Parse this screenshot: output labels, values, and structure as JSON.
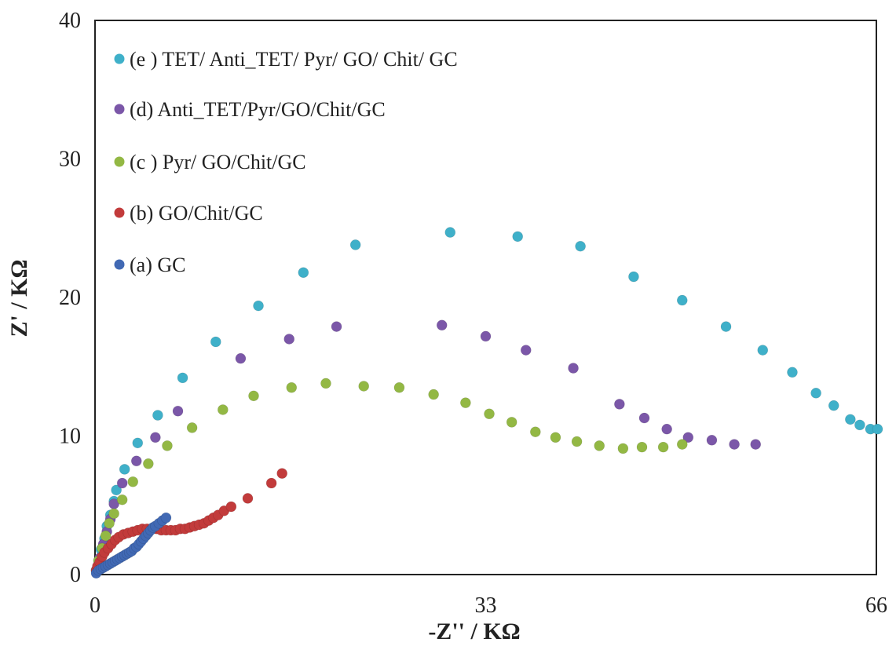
{
  "chart_data": {
    "type": "scatter",
    "xlabel": "-Z'' / KΩ",
    "ylabel": "Z' / KΩ",
    "xlim": [
      0,
      66
    ],
    "ylim": [
      0,
      40
    ],
    "xticks": [
      "0",
      "33",
      "66"
    ],
    "yticks": [
      "0",
      "10",
      "20",
      "30",
      "40"
    ],
    "grid": false,
    "legend_position": "top-left",
    "series": [
      {
        "name": "(e ) TET/ Anti_TET/ Pyr/ GO/ Chit/ GC",
        "color": "#3fb0c9",
        "points": [
          [
            0.1,
            0.3
          ],
          [
            0.3,
            1.0
          ],
          [
            0.5,
            1.8
          ],
          [
            0.8,
            2.6
          ],
          [
            1.0,
            3.5
          ],
          [
            1.3,
            4.3
          ],
          [
            1.6,
            5.3
          ],
          [
            1.8,
            6.1
          ],
          [
            2.5,
            7.6
          ],
          [
            3.6,
            9.5
          ],
          [
            5.3,
            11.5
          ],
          [
            7.4,
            14.2
          ],
          [
            10.2,
            16.8
          ],
          [
            13.8,
            19.4
          ],
          [
            17.6,
            21.8
          ],
          [
            22.0,
            23.8
          ],
          [
            30.0,
            24.7
          ],
          [
            35.7,
            24.4
          ],
          [
            41.0,
            23.7
          ],
          [
            45.5,
            21.5
          ],
          [
            49.6,
            19.8
          ],
          [
            53.3,
            17.9
          ],
          [
            56.4,
            16.2
          ],
          [
            58.9,
            14.6
          ],
          [
            60.9,
            13.1
          ],
          [
            62.4,
            12.2
          ],
          [
            63.8,
            11.2
          ],
          [
            64.6,
            10.8
          ],
          [
            65.5,
            10.5
          ],
          [
            66.1,
            10.5
          ]
        ]
      },
      {
        "name": "(d) Anti_TET/Pyr/GO/Chit/GC",
        "color": "#7b57a8",
        "points": [
          [
            0.1,
            0.3
          ],
          [
            0.4,
            1.2
          ],
          [
            0.7,
            2.2
          ],
          [
            1.0,
            3.1
          ],
          [
            1.3,
            4.0
          ],
          [
            1.6,
            5.1
          ],
          [
            2.3,
            6.6
          ],
          [
            3.5,
            8.2
          ],
          [
            5.1,
            9.9
          ],
          [
            7.0,
            11.8
          ],
          [
            12.3,
            15.6
          ],
          [
            16.4,
            17.0
          ],
          [
            20.4,
            17.9
          ],
          [
            29.3,
            18.0
          ],
          [
            33.0,
            17.2
          ],
          [
            36.4,
            16.2
          ],
          [
            40.4,
            14.9
          ],
          [
            44.3,
            12.3
          ],
          [
            46.4,
            11.3
          ],
          [
            48.3,
            10.5
          ],
          [
            50.1,
            9.9
          ],
          [
            52.1,
            9.7
          ],
          [
            54.0,
            9.4
          ],
          [
            55.8,
            9.4
          ]
        ]
      },
      {
        "name": "(c ) Pyr/ GO/Chit/GC",
        "color": "#93b844",
        "points": [
          [
            0.1,
            0.3
          ],
          [
            0.3,
            1.0
          ],
          [
            0.6,
            1.9
          ],
          [
            0.9,
            2.8
          ],
          [
            1.2,
            3.7
          ],
          [
            1.6,
            4.4
          ],
          [
            2.3,
            5.4
          ],
          [
            3.2,
            6.7
          ],
          [
            4.5,
            8.0
          ],
          [
            6.1,
            9.3
          ],
          [
            8.2,
            10.6
          ],
          [
            10.8,
            11.9
          ],
          [
            13.4,
            12.9
          ],
          [
            16.6,
            13.5
          ],
          [
            19.5,
            13.8
          ],
          [
            22.7,
            13.6
          ],
          [
            25.7,
            13.5
          ],
          [
            28.6,
            13.0
          ],
          [
            31.3,
            12.4
          ],
          [
            33.3,
            11.6
          ],
          [
            35.2,
            11.0
          ],
          [
            37.2,
            10.3
          ],
          [
            38.9,
            9.9
          ],
          [
            40.7,
            9.6
          ],
          [
            42.6,
            9.3
          ],
          [
            44.6,
            9.1
          ],
          [
            46.2,
            9.2
          ],
          [
            48.0,
            9.2
          ],
          [
            49.6,
            9.4
          ]
        ]
      },
      {
        "name": "(b) GO/Chit/GC",
        "color": "#c23b3b",
        "points": [
          [
            0.1,
            0.3
          ],
          [
            0.2,
            0.6
          ],
          [
            0.4,
            0.9
          ],
          [
            0.6,
            1.3
          ],
          [
            0.8,
            1.6
          ],
          [
            1.1,
            1.9
          ],
          [
            1.4,
            2.2
          ],
          [
            1.7,
            2.5
          ],
          [
            2.0,
            2.7
          ],
          [
            2.4,
            2.9
          ],
          [
            2.8,
            3.0
          ],
          [
            3.2,
            3.1
          ],
          [
            3.6,
            3.2
          ],
          [
            4.0,
            3.3
          ],
          [
            4.4,
            3.3
          ],
          [
            4.8,
            3.3
          ],
          [
            5.2,
            3.3
          ],
          [
            5.6,
            3.2
          ],
          [
            6.0,
            3.2
          ],
          [
            6.4,
            3.2
          ],
          [
            6.8,
            3.2
          ],
          [
            7.2,
            3.3
          ],
          [
            7.6,
            3.3
          ],
          [
            8.0,
            3.4
          ],
          [
            8.4,
            3.5
          ],
          [
            8.8,
            3.6
          ],
          [
            9.2,
            3.7
          ],
          [
            9.6,
            3.9
          ],
          [
            10.0,
            4.1
          ],
          [
            10.4,
            4.3
          ],
          [
            10.9,
            4.6
          ],
          [
            11.5,
            4.9
          ],
          [
            12.9,
            5.5
          ],
          [
            14.9,
            6.6
          ],
          [
            15.8,
            7.3
          ]
        ]
      },
      {
        "name": "(a) GC",
        "color": "#4169b4",
        "points": [
          [
            0.1,
            0.1
          ],
          [
            0.3,
            0.3
          ],
          [
            0.5,
            0.4
          ],
          [
            0.7,
            0.5
          ],
          [
            0.9,
            0.6
          ],
          [
            1.1,
            0.7
          ],
          [
            1.3,
            0.8
          ],
          [
            1.5,
            0.9
          ],
          [
            1.7,
            1.0
          ],
          [
            1.9,
            1.1
          ],
          [
            2.1,
            1.2
          ],
          [
            2.3,
            1.3
          ],
          [
            2.5,
            1.4
          ],
          [
            2.7,
            1.5
          ],
          [
            2.9,
            1.6
          ],
          [
            3.1,
            1.7
          ],
          [
            3.3,
            1.9
          ],
          [
            3.5,
            2.0
          ],
          [
            3.7,
            2.2
          ],
          [
            3.9,
            2.4
          ],
          [
            4.1,
            2.6
          ],
          [
            4.3,
            2.8
          ],
          [
            4.5,
            3.0
          ],
          [
            4.7,
            3.2
          ],
          [
            4.9,
            3.4
          ],
          [
            5.1,
            3.5
          ],
          [
            5.4,
            3.7
          ],
          [
            5.7,
            3.9
          ],
          [
            6.0,
            4.1
          ]
        ]
      }
    ]
  }
}
